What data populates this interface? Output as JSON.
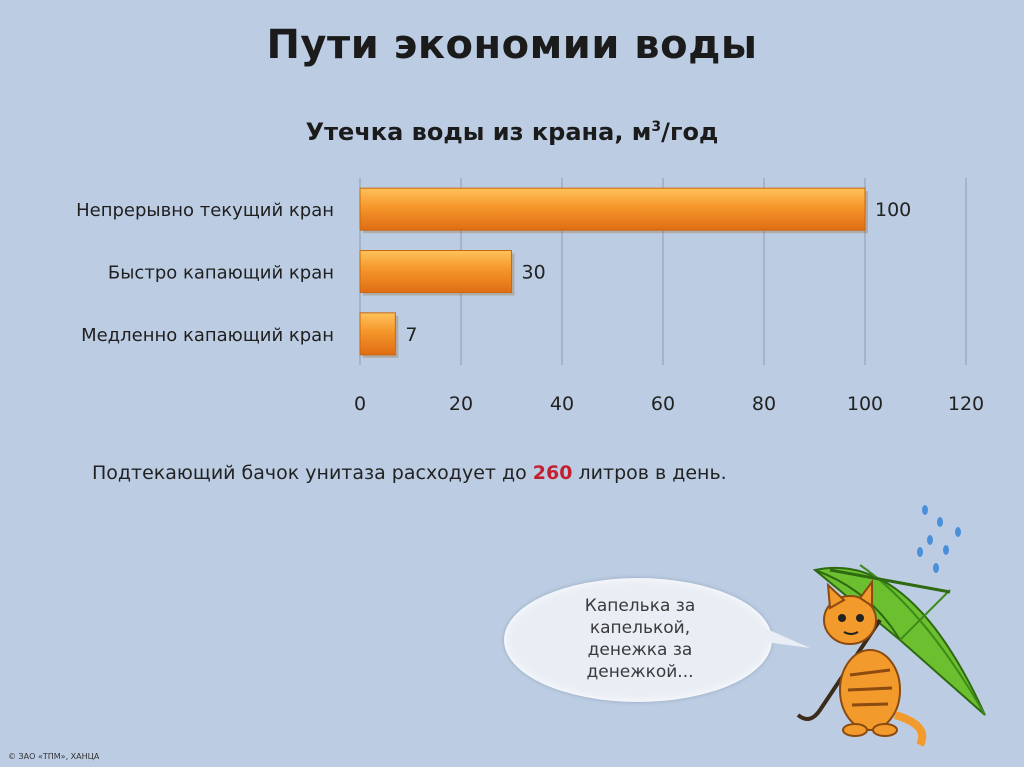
{
  "slide": {
    "title": "Пути экономии воды",
    "note_before": "Подтекающий бачок унитаза расходует до ",
    "note_highlight": "260",
    "note_after": " литров в день.",
    "bubble_lines": [
      "Капелька за",
      "капелькой,",
      "денежка за",
      "денежкой..."
    ],
    "copyright": "© ЗАО «ТПМ», ХАНЦА"
  },
  "chart_data": {
    "type": "bar",
    "orientation": "horizontal",
    "title_main": "Утечка воды из крана, м",
    "title_sup": "3",
    "title_tail": "/год",
    "categories": [
      "Непрерывно текущий кран",
      "Быстро капающий кран",
      "Медленно капающий кран"
    ],
    "values": [
      100,
      30,
      7
    ],
    "data_labels": [
      "100",
      "30",
      "7"
    ],
    "xlim": [
      0,
      120
    ],
    "xticks": [
      0,
      20,
      40,
      60,
      80,
      100,
      120
    ],
    "grid": true,
    "legend": false,
    "bar_color": "#f5962a"
  },
  "colors": {
    "background": "#bccde3",
    "bar_light": "#ffc25a",
    "bar_dark": "#e8781a",
    "highlight": "#c4202f",
    "umbrella": "#5aa82a"
  }
}
